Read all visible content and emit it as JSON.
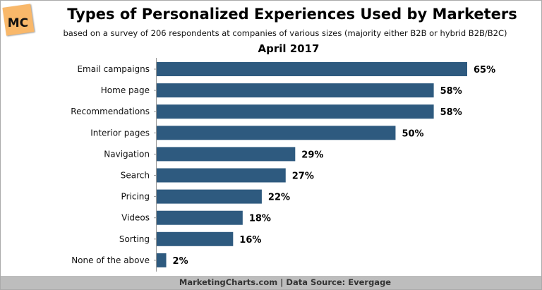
{
  "logo": {
    "text": "MC"
  },
  "chart_data": {
    "type": "bar",
    "orientation": "horizontal",
    "title": "Types of Personalized Experiences Used by Marketers",
    "subtitle": "based on a survey of 206 respondents at companies of various sizes (majority either B2B or hybrid B2B/B2C)",
    "date": "April 2017",
    "categories": [
      "Email campaigns",
      "Home page",
      "Recommendations",
      "Interior pages",
      "Navigation",
      "Search",
      "Pricing",
      "Videos",
      "Sorting",
      "None of the above"
    ],
    "values": [
      65,
      58,
      58,
      50,
      29,
      27,
      22,
      18,
      16,
      2
    ],
    "labels": [
      "65%",
      "58%",
      "58%",
      "50%",
      "29%",
      "27%",
      "22%",
      "18%",
      "16%",
      "2%"
    ],
    "unit": "%",
    "bar_color": "#2e5a7f",
    "grid": false
  },
  "footer": {
    "text": "MarketingCharts.com | Data Source: Evergage"
  }
}
